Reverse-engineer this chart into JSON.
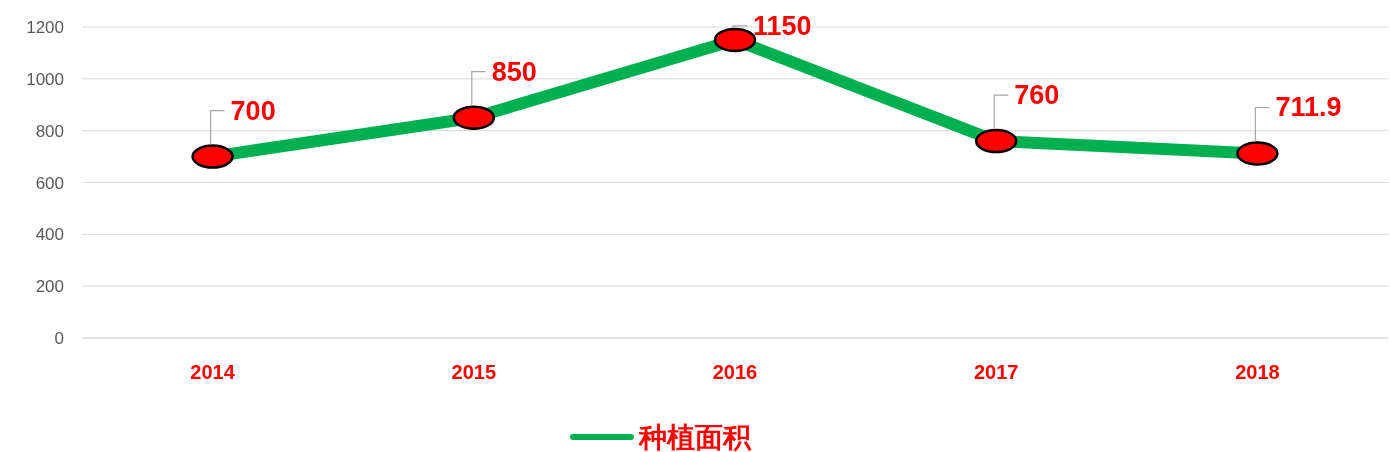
{
  "chart_data": {
    "type": "line",
    "categories": [
      "2014",
      "2015",
      "2016",
      "2017",
      "2018"
    ],
    "series": [
      {
        "name": "种植面积",
        "color": "#00b050",
        "values": [
          700,
          850,
          1150,
          760,
          711.9
        ]
      }
    ],
    "ylim": [
      0,
      1200
    ],
    "yticks": [
      0,
      200,
      400,
      600,
      800,
      1000,
      1200
    ],
    "grid": "y",
    "legend": "bottom",
    "data_labels": true,
    "marker": "circle"
  }
}
